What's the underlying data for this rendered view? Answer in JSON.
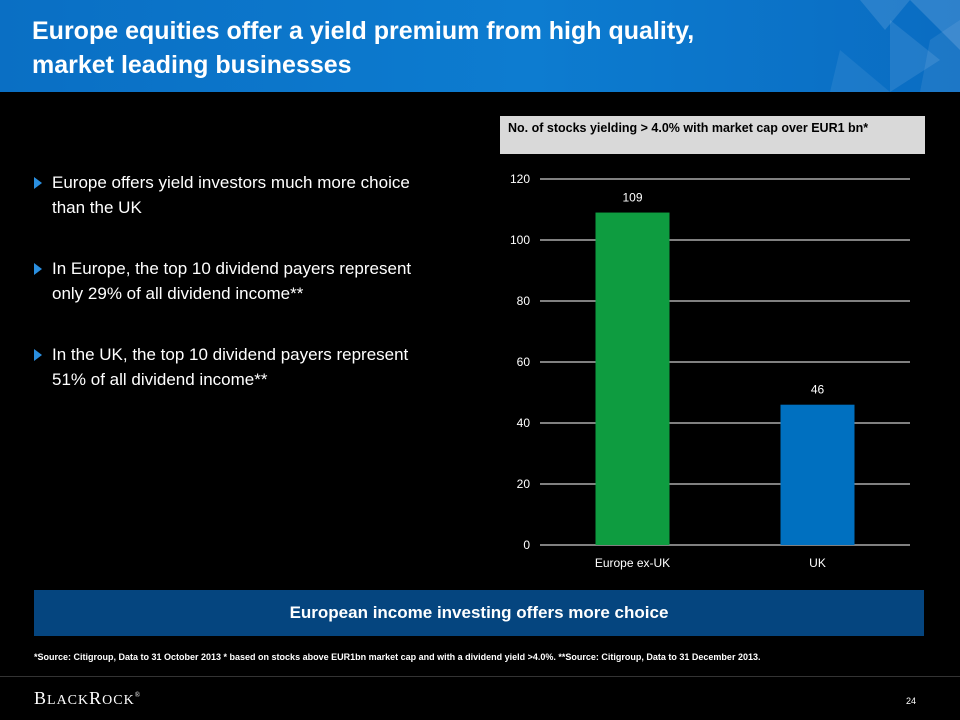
{
  "header": {
    "title_line1": "Europe equities offer a yield premium from high quality,",
    "title_line2": "market leading businesses"
  },
  "bullets": [
    "Europe offers yield investors much more choice than the UK",
    "In Europe, the top 10 dividend payers represent only 29% of all dividend income**",
    "In the UK, the top 10 dividend payers represent 51% of all dividend income**"
  ],
  "banner": "European income investing offers more choice",
  "source": "*Source: Citigroup, Data to 31 October 2013 * based on stocks above EUR1bn market cap and with a dividend yield >4.0%.  **Source: Citigroup, Data to 31 December 2013.",
  "footer": {
    "logo_b": "B",
    "logo_lack": "LACK",
    "logo_r": "R",
    "logo_ock": "OCK",
    "logo_mark": "®",
    "page_number": "24"
  },
  "colors": {
    "header_blue": "#0d7cd0",
    "europe_bar": "#0e9c40",
    "uk_bar": "#0070c0",
    "banner": "#05457f"
  },
  "chart_data": {
    "type": "bar",
    "title": "No. of stocks yielding > 4.0% with market cap over EUR1 bn*",
    "categories": [
      "Europe ex-UK",
      "UK"
    ],
    "values": [
      109,
      46
    ],
    "data_labels": [
      "109",
      "46"
    ],
    "bar_colors": [
      "#0e9c40",
      "#0070c0"
    ],
    "ylim": [
      0,
      120
    ],
    "yticks": [
      0,
      20,
      40,
      60,
      80,
      100,
      120
    ],
    "grid": true,
    "xlabel": "",
    "ylabel": ""
  }
}
